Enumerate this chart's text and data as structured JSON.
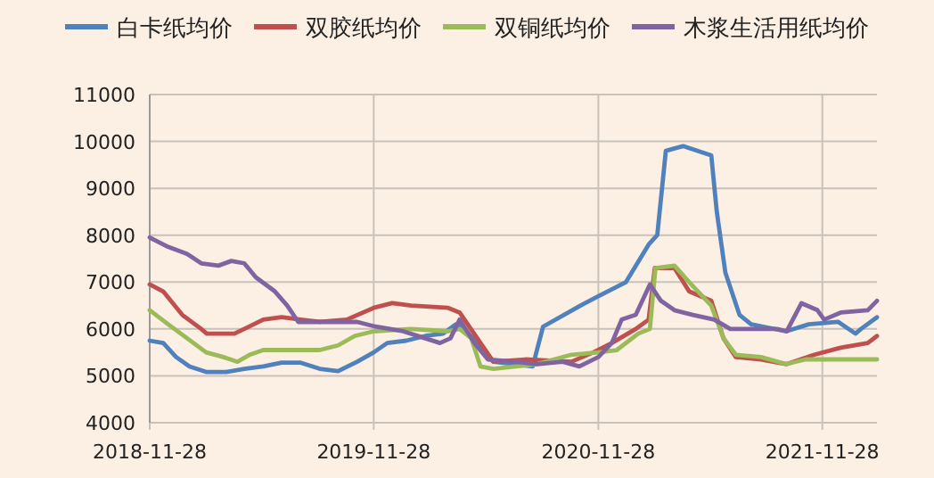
{
  "chart_data": {
    "type": "line",
    "legend": "top",
    "grid": true,
    "xlim": [
      "2018-11-28",
      "2022-02-25"
    ],
    "xticks": [
      "2018-11-28",
      "2019-11-28",
      "2020-11-28",
      "2021-11-28"
    ],
    "ylim": [
      4000,
      11000
    ],
    "yticks": [
      4000,
      5000,
      6000,
      7000,
      8000,
      9000,
      10000,
      11000
    ],
    "series": [
      {
        "name": "白卡纸均价",
        "color": "#4f81bd",
        "x": [
          "2018-11-28",
          "2018-12-20",
          "2019-01-10",
          "2019-02-01",
          "2019-03-01",
          "2019-04-01",
          "2019-05-01",
          "2019-06-01",
          "2019-07-01",
          "2019-08-01",
          "2019-09-01",
          "2019-10-01",
          "2019-11-01",
          "2019-11-28",
          "2019-12-20",
          "2020-01-20",
          "2020-02-20",
          "2020-03-20",
          "2020-04-10",
          "2020-04-20",
          "2020-05-25",
          "2020-06-10",
          "2020-08-13",
          "2020-08-30",
          "2020-10-30",
          "2020-11-28",
          "2021-01-12",
          "2021-02-18",
          "2021-03-04",
          "2021-03-18",
          "2021-04-15",
          "2021-05-31",
          "2021-06-09",
          "2021-06-23",
          "2021-07-16",
          "2021-08-04",
          "2021-09-30",
          "2021-11-06",
          "2021-12-24",
          "2022-01-21",
          "2022-01-30",
          "2022-02-25"
        ],
        "values": [
          5750,
          5700,
          5400,
          5200,
          5080,
          5080,
          5150,
          5200,
          5280,
          5280,
          5150,
          5100,
          5300,
          5500,
          5700,
          5750,
          5850,
          5900,
          6100,
          6050,
          5550,
          5300,
          5200,
          6050,
          6500,
          6700,
          7000,
          7800,
          8000,
          9800,
          9900,
          9700,
          8500,
          7200,
          6300,
          6100,
          5950,
          6100,
          6150,
          5900,
          6000,
          6250
        ]
      },
      {
        "name": "双胶纸均价",
        "color": "#c0504d",
        "x": [
          "2018-11-28",
          "2018-12-20",
          "2019-01-20",
          "2019-02-20",
          "2019-03-01",
          "2019-04-15",
          "2019-05-01",
          "2019-06-01",
          "2019-07-01",
          "2019-08-01",
          "2019-09-01",
          "2019-10-15",
          "2019-11-28",
          "2019-12-28",
          "2020-01-28",
          "2020-03-28",
          "2020-04-16",
          "2020-05-20",
          "2020-06-10",
          "2020-08-01",
          "2020-10-15",
          "2020-11-20",
          "2020-12-20",
          "2021-01-28",
          "2021-02-18",
          "2021-02-28",
          "2021-04-01",
          "2021-04-25",
          "2021-05-31",
          "2021-06-20",
          "2021-07-10",
          "2021-08-20",
          "2021-10-01",
          "2021-11-15",
          "2021-12-28",
          "2022-02-10",
          "2022-02-25"
        ],
        "values": [
          6950,
          6800,
          6300,
          6000,
          5900,
          5900,
          6000,
          6200,
          6250,
          6200,
          6150,
          6200,
          6450,
          6550,
          6500,
          6450,
          6350,
          5700,
          5300,
          5350,
          5300,
          5500,
          5700,
          6000,
          6200,
          7300,
          7300,
          6800,
          6600,
          5800,
          5400,
          5350,
          5250,
          5450,
          5600,
          5700,
          5850
        ]
      },
      {
        "name": "双铜纸均价",
        "color": "#9bbb59",
        "x": [
          "2018-11-28",
          "2018-12-28",
          "2019-01-28",
          "2019-02-28",
          "2019-03-28",
          "2019-04-20",
          "2019-05-10",
          "2019-06-01",
          "2019-09-01",
          "2019-10-01",
          "2019-10-28",
          "2019-11-28",
          "2020-01-28",
          "2020-03-28",
          "2020-04-16",
          "2020-05-05",
          "2020-05-20",
          "2020-06-10",
          "2020-08-20",
          "2020-10-15",
          "2020-11-28",
          "2020-12-28",
          "2021-02-01",
          "2021-02-20",
          "2021-03-01",
          "2021-04-01",
          "2021-04-25",
          "2021-05-31",
          "2021-06-20",
          "2021-07-10",
          "2021-08-20",
          "2021-09-30",
          "2021-11-01",
          "2022-02-25"
        ],
        "values": [
          6400,
          6100,
          5800,
          5500,
          5400,
          5300,
          5450,
          5550,
          5550,
          5650,
          5850,
          5950,
          6000,
          5950,
          6000,
          5800,
          5200,
          5150,
          5250,
          5450,
          5500,
          5550,
          5900,
          6000,
          7300,
          7350,
          7000,
          6500,
          5800,
          5450,
          5400,
          5250,
          5350,
          5350
        ]
      },
      {
        "name": "木浆生活用纸均价",
        "color": "#8064a2",
        "x": [
          "2018-11-28",
          "2018-12-28",
          "2019-01-28",
          "2019-02-20",
          "2019-03-20",
          "2019-04-10",
          "2019-05-01",
          "2019-05-20",
          "2019-06-20",
          "2019-07-10",
          "2019-07-28",
          "2019-09-28",
          "2019-11-01",
          "2019-12-01",
          "2020-01-15",
          "2020-02-20",
          "2020-03-15",
          "2020-04-01",
          "2020-04-16",
          "2020-05-10",
          "2020-06-01",
          "2020-07-15",
          "2020-08-20",
          "2020-10-01",
          "2020-10-28",
          "2020-11-28",
          "2020-12-20",
          "2021-01-05",
          "2021-01-28",
          "2021-02-20",
          "2021-03-10",
          "2021-04-01",
          "2021-05-01",
          "2021-06-05",
          "2021-07-01",
          "2021-08-10",
          "2021-09-15",
          "2021-10-01",
          "2021-10-25",
          "2021-11-20",
          "2021-12-01",
          "2021-12-28",
          "2022-02-10",
          "2022-02-25"
        ],
        "values": [
          7950,
          7750,
          7600,
          7400,
          7350,
          7450,
          7400,
          7100,
          6800,
          6500,
          6150,
          6150,
          6150,
          6050,
          5950,
          5800,
          5700,
          5800,
          6200,
          5700,
          5350,
          5300,
          5250,
          5300,
          5200,
          5400,
          5700,
          6200,
          6300,
          6950,
          6600,
          6400,
          6300,
          6200,
          6000,
          6000,
          6000,
          5950,
          6550,
          6400,
          6200,
          6350,
          6400,
          6600
        ]
      }
    ]
  }
}
